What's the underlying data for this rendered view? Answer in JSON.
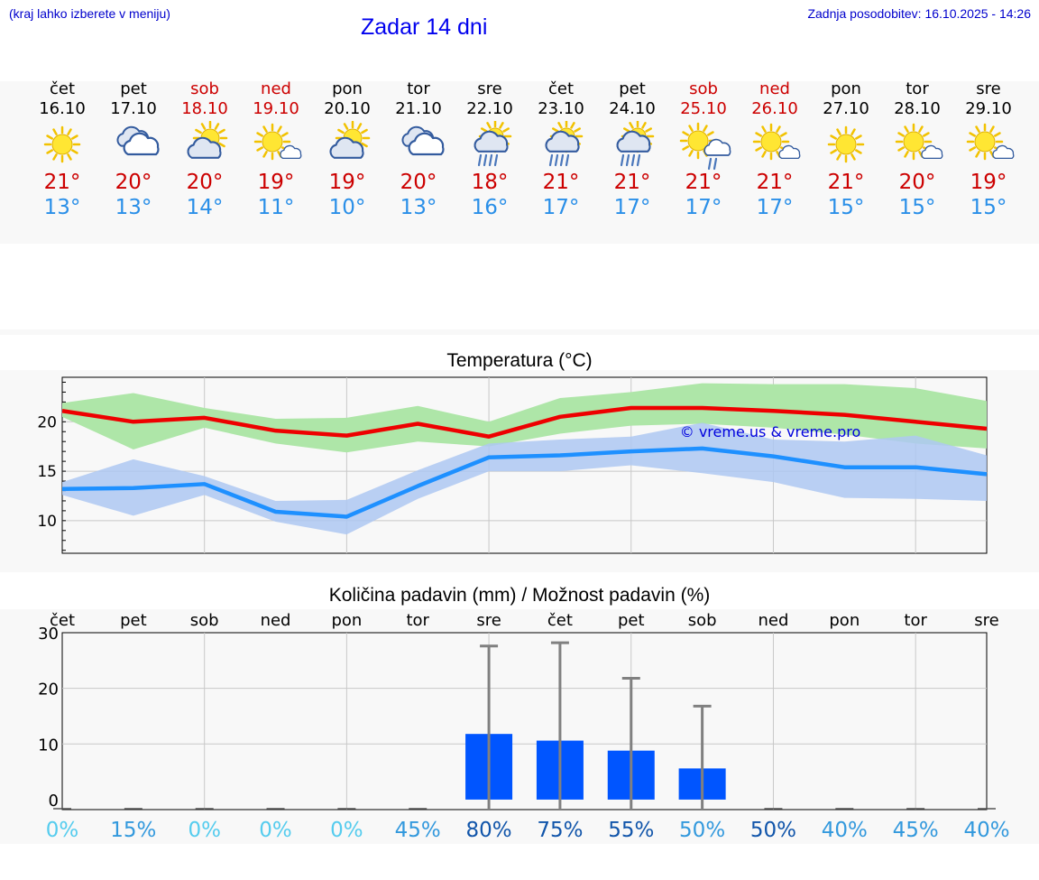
{
  "header": {
    "menu_hint": "(kraj lahko izberete v meniju)",
    "title": "Zadar 14 dni",
    "updated": "Zadnja posodobitev: 16.10.2025 - 14:26"
  },
  "colors": {
    "weekend": "#cc0000",
    "max_temp": "#cc0000",
    "min_temp": "#2a8fe8",
    "max_line": "#ee0000",
    "max_band": "#aee6a8",
    "min_line": "#1e90ff",
    "min_band": "#aec8f2",
    "bar": "#0055ff",
    "error_bar": "#808080",
    "watermark": "#0000dd"
  },
  "days": [
    {
      "name": "čet",
      "date": "16.10",
      "weekend": false,
      "icon": "sun-icon",
      "tmax": "21°",
      "tmin": "13°"
    },
    {
      "name": "pet",
      "date": "17.10",
      "weekend": false,
      "icon": "cloudy-icon",
      "tmax": "20°",
      "tmin": "13°"
    },
    {
      "name": "sob",
      "date": "18.10",
      "weekend": true,
      "icon": "partly-cloudy-icon",
      "tmax": "20°",
      "tmin": "14°"
    },
    {
      "name": "ned",
      "date": "19.10",
      "weekend": true,
      "icon": "sun-small-cloud-icon",
      "tmax": "19°",
      "tmin": "11°"
    },
    {
      "name": "pon",
      "date": "20.10",
      "weekend": false,
      "icon": "partly-cloudy-icon",
      "tmax": "19°",
      "tmin": "10°"
    },
    {
      "name": "tor",
      "date": "21.10",
      "weekend": false,
      "icon": "cloudy-icon",
      "tmax": "20°",
      "tmin": "13°"
    },
    {
      "name": "sre",
      "date": "22.10",
      "weekend": false,
      "icon": "rain-icon",
      "tmax": "18°",
      "tmin": "16°"
    },
    {
      "name": "čet",
      "date": "23.10",
      "weekend": false,
      "icon": "rain-icon",
      "tmax": "21°",
      "tmin": "17°"
    },
    {
      "name": "pet",
      "date": "24.10",
      "weekend": false,
      "icon": "rain-icon",
      "tmax": "21°",
      "tmin": "17°"
    },
    {
      "name": "sob",
      "date": "25.10",
      "weekend": true,
      "icon": "sun-shower-icon",
      "tmax": "21°",
      "tmin": "17°"
    },
    {
      "name": "ned",
      "date": "26.10",
      "weekend": true,
      "icon": "sun-small-cloud-icon",
      "tmax": "21°",
      "tmin": "17°"
    },
    {
      "name": "pon",
      "date": "27.10",
      "weekend": false,
      "icon": "sun-icon",
      "tmax": "21°",
      "tmin": "15°"
    },
    {
      "name": "tor",
      "date": "28.10",
      "weekend": false,
      "icon": "sun-small-cloud-icon",
      "tmax": "20°",
      "tmin": "15°"
    },
    {
      "name": "sre",
      "date": "29.10",
      "weekend": false,
      "icon": "sun-small-cloud-icon",
      "tmax": "19°",
      "tmin": "15°"
    }
  ],
  "chart_data": [
    {
      "type": "line",
      "title": "Temperatura (°C)",
      "x": [
        "čet",
        "pet",
        "sob",
        "ned",
        "pon",
        "tor",
        "sre",
        "čet",
        "pet",
        "sob",
        "ned",
        "pon",
        "tor",
        "sre"
      ],
      "ylim": [
        6.7,
        24.5
      ],
      "yticks": [
        10,
        15,
        20
      ],
      "grid": true,
      "watermark": "© vreme.us & vreme.pro",
      "series": [
        {
          "role": "max",
          "values": [
            21.1,
            20.0,
            20.4,
            19.1,
            18.6,
            19.8,
            18.5,
            20.5,
            21.4,
            21.4,
            21.1,
            20.7,
            20.0,
            19.3
          ],
          "band_high": [
            21.9,
            22.9,
            21.4,
            20.3,
            20.4,
            21.6,
            20.0,
            22.4,
            23.0,
            23.9,
            23.8,
            23.8,
            23.4,
            22.1
          ],
          "band_low": [
            20.5,
            17.2,
            19.4,
            17.8,
            16.9,
            18.0,
            17.5,
            18.8,
            19.6,
            19.8,
            19.4,
            18.7,
            17.8,
            17.3
          ]
        },
        {
          "role": "min",
          "values": [
            13.2,
            13.3,
            13.7,
            10.9,
            10.4,
            13.5,
            16.4,
            16.6,
            17.0,
            17.3,
            16.5,
            15.4,
            15.4,
            14.7
          ],
          "band_high": [
            13.9,
            16.2,
            14.5,
            12.0,
            12.1,
            15.1,
            17.8,
            18.2,
            18.5,
            19.9,
            18.2,
            18.0,
            18.6,
            16.6
          ],
          "band_low": [
            12.6,
            10.5,
            12.6,
            9.9,
            8.6,
            12.2,
            15.0,
            15.0,
            15.6,
            14.8,
            13.9,
            12.3,
            12.2,
            12.0
          ]
        }
      ]
    },
    {
      "type": "bar",
      "title": "Količina padavin (mm) / Možnost padavin (%)",
      "categories": [
        "čet",
        "pet",
        "sob",
        "ned",
        "pon",
        "tor",
        "sre",
        "čet",
        "pet",
        "sob",
        "ned",
        "pon",
        "tor",
        "sre"
      ],
      "values": [
        0,
        0,
        0,
        0,
        0,
        0,
        11.8,
        10.6,
        8.8,
        5.6,
        0,
        0,
        0,
        0
      ],
      "error_high": [
        0,
        0,
        0,
        0,
        0,
        0,
        27.6,
        28.2,
        21.8,
        16.8,
        0,
        0,
        0,
        0
      ],
      "ylim": [
        -1.8,
        30
      ],
      "yticks": [
        0,
        10,
        20,
        30
      ],
      "probability": [
        "0%",
        "15%",
        "0%",
        "0%",
        "0%",
        "45%",
        "80%",
        "75%",
        "55%",
        "50%",
        "50%",
        "40%",
        "45%",
        "40%"
      ],
      "probability_colors": [
        "#55ccee",
        "#3399dd",
        "#55ccee",
        "#55ccee",
        "#55ccee",
        "#3399dd",
        "#1155aa",
        "#1155aa",
        "#1155aa",
        "#3399dd",
        "#1155aa",
        "#3399dd",
        "#3399dd",
        "#3399dd"
      ]
    }
  ]
}
